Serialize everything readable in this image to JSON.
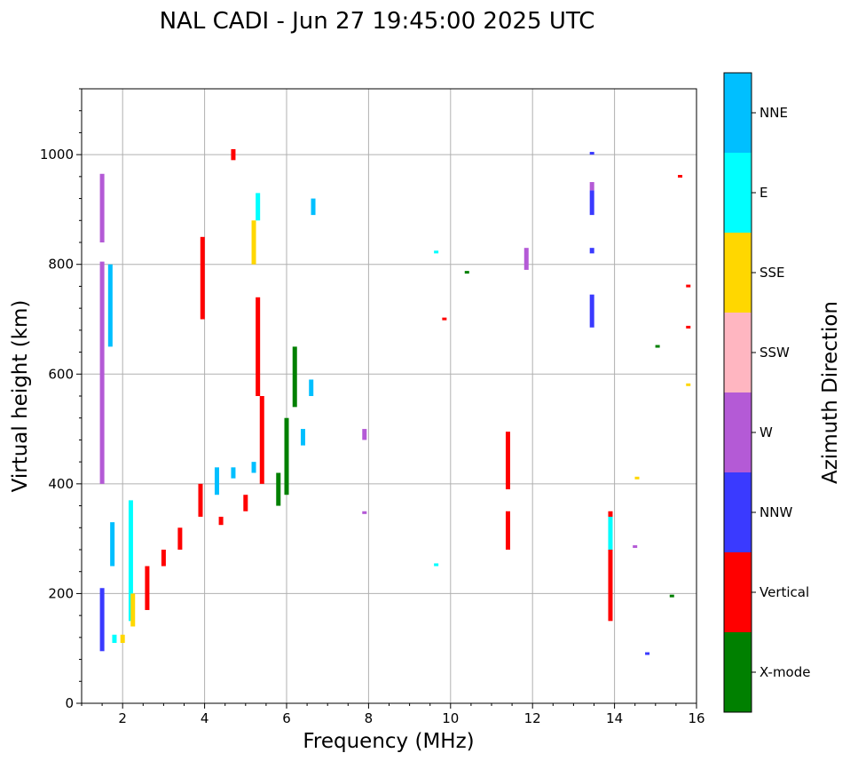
{
  "chart_data": {
    "type": "scatter",
    "title": "NAL CADI - Jun 27 19:45:00 2025 UTC",
    "xlabel": "Frequency (MHz)",
    "ylabel": "Virtual height (km)",
    "xlim": [
      1,
      16
    ],
    "ylim": [
      0,
      1120
    ],
    "xticks": [
      2,
      4,
      6,
      8,
      10,
      12,
      14,
      16
    ],
    "yticks": [
      0,
      200,
      400,
      600,
      800,
      1000
    ],
    "grid": true,
    "colorbar": {
      "label": "Azimuth Direction",
      "categories": [
        {
          "name": "X-mode",
          "color": "#008000"
        },
        {
          "name": "Vertical",
          "color": "#ff0000"
        },
        {
          "name": "NNW",
          "color": "#3a3aff"
        },
        {
          "name": "W",
          "color": "#b45ad6"
        },
        {
          "name": "SSW",
          "color": "#ffb6c1"
        },
        {
          "name": "SSE",
          "color": "#ffd700"
        },
        {
          "name": "E",
          "color": "#00ffff"
        },
        {
          "name": "NNE",
          "color": "#00bfff"
        }
      ]
    },
    "segments": [
      {
        "dir": "W",
        "f": 1.5,
        "h0": 840,
        "h1": 965
      },
      {
        "dir": "W",
        "f": 1.5,
        "h0": 400,
        "h1": 805
      },
      {
        "dir": "NNW",
        "f": 1.5,
        "h0": 95,
        "h1": 210
      },
      {
        "dir": "NNE",
        "f": 1.7,
        "h0": 650,
        "h1": 800
      },
      {
        "dir": "NNE",
        "f": 1.75,
        "h0": 250,
        "h1": 330
      },
      {
        "dir": "E",
        "f": 1.8,
        "h0": 110,
        "h1": 125
      },
      {
        "dir": "SSE",
        "f": 2.0,
        "h0": 110,
        "h1": 125
      },
      {
        "dir": "E",
        "f": 2.2,
        "h0": 150,
        "h1": 370
      },
      {
        "dir": "SSE",
        "f": 2.25,
        "h0": 140,
        "h1": 200
      },
      {
        "dir": "Vertical",
        "f": 2.6,
        "h0": 170,
        "h1": 250
      },
      {
        "dir": "Vertical",
        "f": 3.0,
        "h0": 250,
        "h1": 280
      },
      {
        "dir": "Vertical",
        "f": 3.4,
        "h0": 280,
        "h1": 320
      },
      {
        "dir": "Vertical",
        "f": 3.9,
        "h0": 340,
        "h1": 400
      },
      {
        "dir": "NNE",
        "f": 4.3,
        "h0": 380,
        "h1": 430
      },
      {
        "dir": "NNE",
        "f": 4.7,
        "h0": 410,
        "h1": 430
      },
      {
        "dir": "NNE",
        "f": 5.2,
        "h0": 420,
        "h1": 440
      },
      {
        "dir": "Vertical",
        "f": 4.4,
        "h0": 325,
        "h1": 340
      },
      {
        "dir": "Vertical",
        "f": 5.0,
        "h0": 350,
        "h1": 380
      },
      {
        "dir": "Vertical",
        "f": 5.4,
        "h0": 400,
        "h1": 560
      },
      {
        "dir": "Vertical",
        "f": 5.3,
        "h0": 560,
        "h1": 740
      },
      {
        "dir": "X-mode",
        "f": 5.8,
        "h0": 360,
        "h1": 420
      },
      {
        "dir": "X-mode",
        "f": 6.0,
        "h0": 380,
        "h1": 520
      },
      {
        "dir": "X-mode",
        "f": 6.2,
        "h0": 540,
        "h1": 650
      },
      {
        "dir": "SSE",
        "f": 5.2,
        "h0": 800,
        "h1": 880
      },
      {
        "dir": "E",
        "f": 5.3,
        "h0": 880,
        "h1": 930
      },
      {
        "dir": "NNE",
        "f": 6.6,
        "h0": 560,
        "h1": 590
      },
      {
        "dir": "NNE",
        "f": 6.4,
        "h0": 470,
        "h1": 500
      },
      {
        "dir": "NNE",
        "f": 6.65,
        "h0": 890,
        "h1": 920
      },
      {
        "dir": "Vertical",
        "f": 4.7,
        "h0": 990,
        "h1": 1010
      },
      {
        "dir": "Vertical",
        "f": 3.95,
        "h0": 700,
        "h1": 850
      },
      {
        "dir": "Vertical",
        "f": 11.4,
        "h0": 280,
        "h1": 350
      },
      {
        "dir": "Vertical",
        "f": 11.4,
        "h0": 390,
        "h1": 495
      },
      {
        "dir": "W",
        "f": 11.85,
        "h0": 790,
        "h1": 830
      },
      {
        "dir": "NNW",
        "f": 13.45,
        "h0": 685,
        "h1": 745
      },
      {
        "dir": "NNW",
        "f": 13.45,
        "h0": 820,
        "h1": 830
      },
      {
        "dir": "NNW",
        "f": 13.45,
        "h0": 890,
        "h1": 935
      },
      {
        "dir": "W",
        "f": 13.45,
        "h0": 935,
        "h1": 950
      },
      {
        "dir": "NNW",
        "f": 13.45,
        "h0": 1000,
        "h1": 1005
      },
      {
        "dir": "Vertical",
        "f": 13.9,
        "h0": 150,
        "h1": 350
      },
      {
        "dir": "E",
        "f": 13.9,
        "h0": 280,
        "h1": 340
      },
      {
        "dir": "SSE",
        "f": 14.55,
        "h0": 410,
        "h1": 413
      },
      {
        "dir": "W",
        "f": 14.5,
        "h0": 285,
        "h1": 288
      },
      {
        "dir": "NNW",
        "f": 14.8,
        "h0": 90,
        "h1": 93
      },
      {
        "dir": "X-mode",
        "f": 15.4,
        "h0": 195,
        "h1": 198
      },
      {
        "dir": "X-mode",
        "f": 15.05,
        "h0": 650,
        "h1": 653
      },
      {
        "dir": "Vertical",
        "f": 15.6,
        "h0": 960,
        "h1": 963
      },
      {
        "dir": "Vertical",
        "f": 15.8,
        "h0": 760,
        "h1": 763
      },
      {
        "dir": "Vertical",
        "f": 15.8,
        "h0": 685,
        "h1": 688
      },
      {
        "dir": "SSE",
        "f": 15.8,
        "h0": 580,
        "h1": 583
      },
      {
        "dir": "E",
        "f": 9.65,
        "h0": 820,
        "h1": 825
      },
      {
        "dir": "E",
        "f": 9.65,
        "h0": 250,
        "h1": 255
      },
      {
        "dir": "W",
        "f": 7.9,
        "h0": 345,
        "h1": 350
      },
      {
        "dir": "W",
        "f": 7.9,
        "h0": 480,
        "h1": 500
      },
      {
        "dir": "Vertical",
        "f": 9.85,
        "h0": 700,
        "h1": 703
      },
      {
        "dir": "X-mode",
        "f": 10.4,
        "h0": 785,
        "h1": 788
      }
    ]
  }
}
